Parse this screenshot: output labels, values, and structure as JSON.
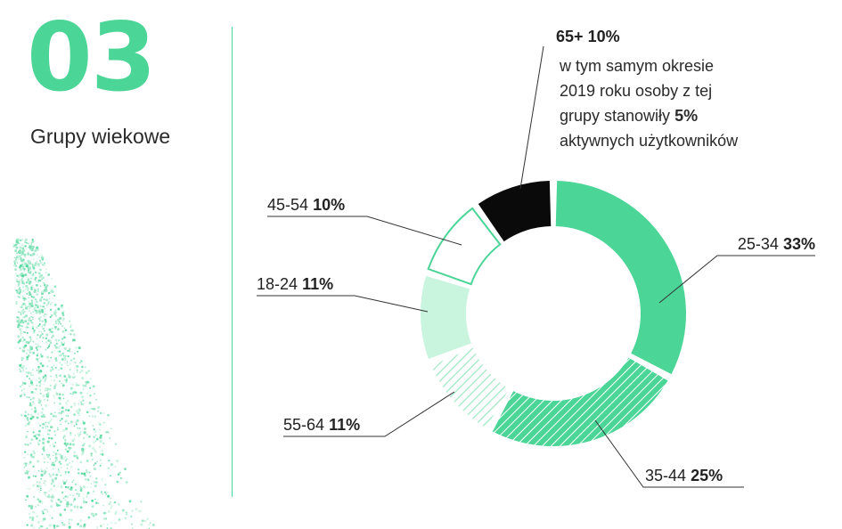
{
  "header": {
    "number": "03",
    "title": "Grupy wiekowe"
  },
  "colors": {
    "accent": "#4bd597",
    "light": "#c9f5df",
    "black": "#0a0a0a"
  },
  "chart_data": {
    "type": "pie",
    "donut": true,
    "slices": [
      {
        "label": "25-34",
        "value_text": "33%",
        "value": 33,
        "style": "solid-green"
      },
      {
        "label": "35-44",
        "value_text": "25%",
        "value": 25,
        "style": "hatched-green"
      },
      {
        "label": "55-64",
        "value_text": "11%",
        "value": 11,
        "style": "hatched-light"
      },
      {
        "label": "18-24",
        "value_text": "11%",
        "value": 11,
        "style": "solid-light"
      },
      {
        "label": "45-54",
        "value_text": "10%",
        "value": 10,
        "style": "outline-green"
      },
      {
        "label": "65+",
        "value_text": "10%",
        "value": 10,
        "style": "solid-black"
      }
    ],
    "annotation": {
      "lines": [
        "w tym samym okresie",
        "2019 roku osoby z tej"
      ],
      "line3_prefix": "grupy stanowiły ",
      "line3_bold": "5%",
      "line4": "aktywnych użytkowników"
    }
  }
}
